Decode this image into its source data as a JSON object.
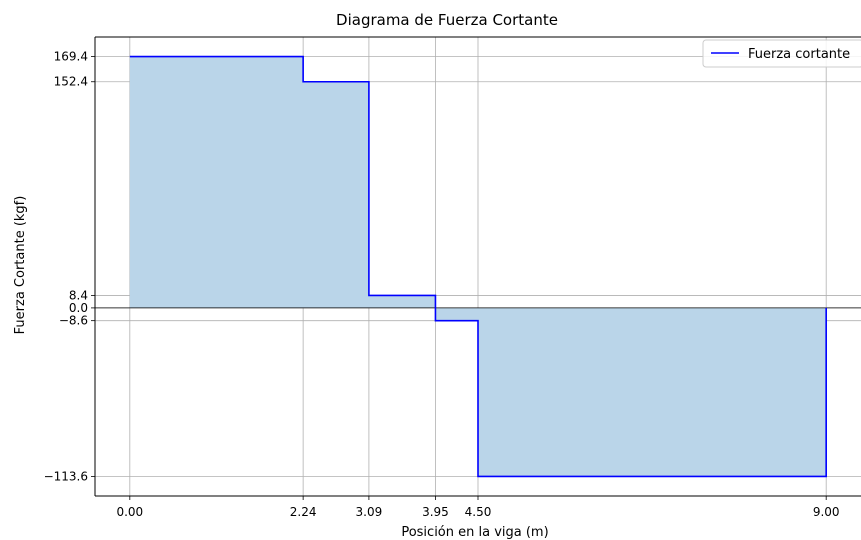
{
  "chart_data": {
    "type": "area",
    "title": "Diagrama de Fuerza Cortante",
    "xlabel": "Posición en la viga (m)",
    "ylabel": "Fuerza Cortante (kgf)",
    "xlim": [
      -0.45,
      9.45
    ],
    "ylim": [
      -126.75,
      182.55
    ],
    "x_ticks": [
      0.0,
      2.24,
      3.09,
      3.95,
      4.5,
      9.0
    ],
    "x_tick_labels": [
      "0.00",
      "2.24",
      "3.09",
      "3.95",
      "4.50",
      "9.00"
    ],
    "y_ticks": [
      169.4,
      152.4,
      8.4,
      0.0,
      -8.6,
      -113.6
    ],
    "y_tick_labels": [
      "169.4",
      "152.4",
      "8.4",
      "0.0",
      "−8.6",
      "−113.6"
    ],
    "grid": true,
    "zero_line": true,
    "legend_position": "top-right",
    "series": [
      {
        "name": "Fuerza cortante",
        "color": "#0000ff",
        "fill_color": "#bad5e9",
        "x": [
          0.0,
          2.24,
          2.24,
          3.09,
          3.09,
          3.95,
          3.95,
          4.5,
          4.5,
          9.0,
          9.0
        ],
        "y": [
          169.4,
          169.4,
          152.4,
          152.4,
          8.4,
          8.4,
          -8.6,
          -8.6,
          -113.6,
          -113.6,
          0.0
        ]
      }
    ]
  }
}
